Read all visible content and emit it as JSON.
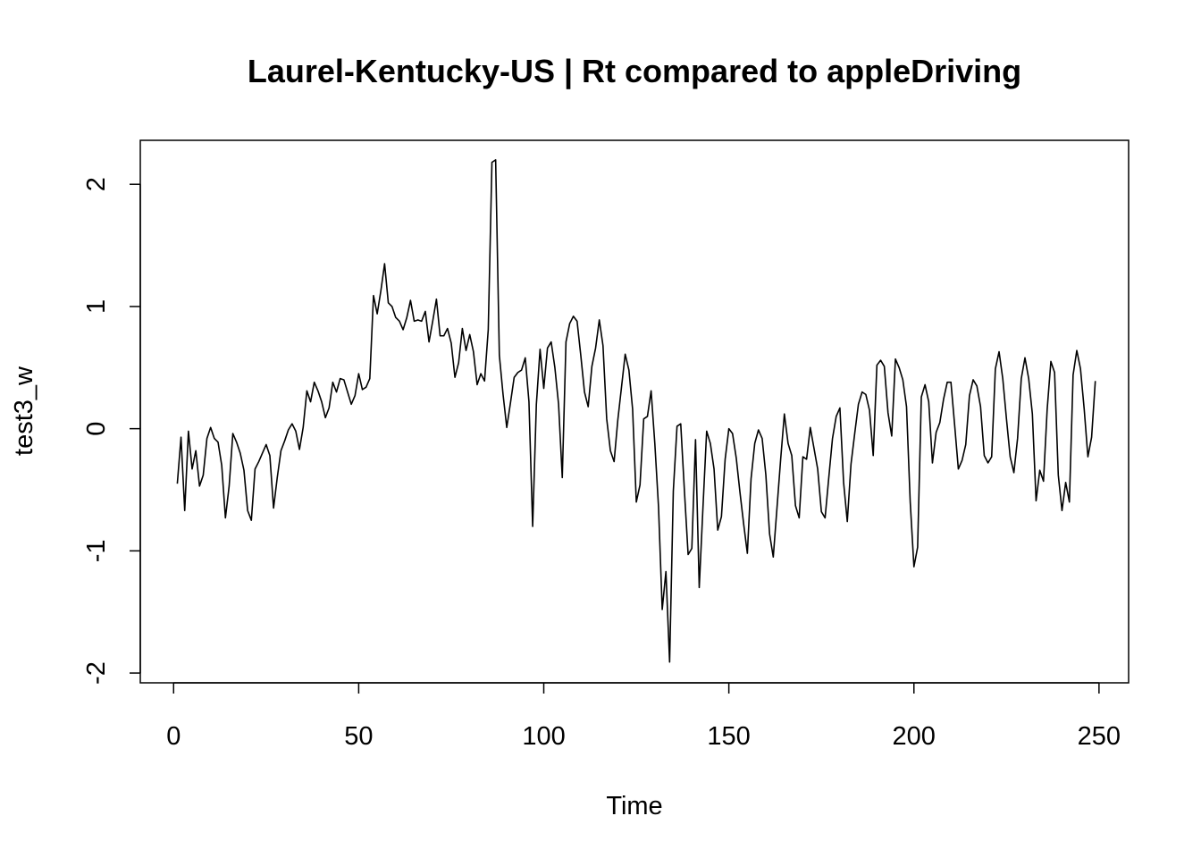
{
  "chart_data": {
    "type": "line",
    "title": "Laurel-Kentucky-US | Rt compared to appleDriving",
    "xlabel": "Time",
    "ylabel": "test3_w",
    "xlim": [
      -9,
      258
    ],
    "ylim": [
      -2.08,
      2.36
    ],
    "x_ticks": [
      0,
      50,
      100,
      150,
      200,
      250
    ],
    "y_ticks": [
      -2,
      -1,
      0,
      1,
      2
    ],
    "grid": false,
    "legend": "none",
    "line_color": "#000000",
    "series": [
      {
        "x_start": 1,
        "values": [
          -0.45,
          -0.07,
          -0.67,
          -0.02,
          -0.33,
          -0.18,
          -0.47,
          -0.38,
          -0.08,
          0.01,
          -0.08,
          -0.11,
          -0.3,
          -0.73,
          -0.47,
          -0.04,
          -0.11,
          -0.2,
          -0.34,
          -0.67,
          -0.75,
          -0.33,
          -0.27,
          -0.2,
          -0.13,
          -0.22,
          -0.65,
          -0.4,
          -0.18,
          -0.1,
          -0.01,
          0.04,
          -0.02,
          -0.17,
          0.01,
          0.31,
          0.22,
          0.38,
          0.31,
          0.22,
          0.09,
          0.17,
          0.38,
          0.3,
          0.41,
          0.4,
          0.3,
          0.2,
          0.27,
          0.45,
          0.32,
          0.34,
          0.41,
          1.09,
          0.94,
          1.13,
          1.35,
          1.03,
          1.0,
          0.91,
          0.88,
          0.81,
          0.91,
          1.05,
          0.88,
          0.89,
          0.88,
          0.96,
          0.71,
          0.88,
          1.06,
          0.76,
          0.76,
          0.82,
          0.7,
          0.42,
          0.54,
          0.82,
          0.64,
          0.77,
          0.63,
          0.36,
          0.45,
          0.39,
          0.81,
          2.18,
          2.2,
          0.6,
          0.28,
          0.01,
          0.21,
          0.42,
          0.46,
          0.48,
          0.58,
          0.22,
          -0.8,
          0.2,
          0.65,
          0.33,
          0.66,
          0.71,
          0.5,
          0.2,
          -0.4,
          0.71,
          0.86,
          0.92,
          0.88,
          0.6,
          0.3,
          0.18,
          0.51,
          0.66,
          0.89,
          0.68,
          0.08,
          -0.18,
          -0.27,
          0.07,
          0.34,
          0.61,
          0.48,
          0.16,
          -0.6,
          -0.46,
          0.08,
          0.1,
          0.31,
          -0.12,
          -0.64,
          -1.48,
          -1.17,
          -1.91,
          -0.51,
          0.02,
          0.04,
          -0.51,
          -1.03,
          -0.98,
          -0.09,
          -1.3,
          -0.65,
          -0.02,
          -0.12,
          -0.33,
          -0.83,
          -0.72,
          -0.25,
          0.0,
          -0.04,
          -0.24,
          -0.52,
          -0.78,
          -1.02,
          -0.41,
          -0.12,
          -0.01,
          -0.08,
          -0.38,
          -0.86,
          -1.05,
          -0.65,
          -0.25,
          0.12,
          -0.12,
          -0.22,
          -0.63,
          -0.73,
          -0.23,
          -0.25,
          0.01,
          -0.16,
          -0.33,
          -0.68,
          -0.73,
          -0.4,
          -0.08,
          0.1,
          0.17,
          -0.44,
          -0.76,
          -0.29,
          -0.04,
          0.2,
          0.3,
          0.28,
          0.15,
          -0.22,
          0.52,
          0.56,
          0.51,
          0.13,
          -0.06,
          0.57,
          0.5,
          0.4,
          0.18,
          -0.6,
          -1.13,
          -0.97,
          0.26,
          0.36,
          0.22,
          -0.28,
          -0.03,
          0.05,
          0.24,
          0.38,
          0.38,
          0.03,
          -0.33,
          -0.26,
          -0.13,
          0.27,
          0.4,
          0.35,
          0.18,
          -0.22,
          -0.28,
          -0.23,
          0.49,
          0.63,
          0.41,
          0.08,
          -0.23,
          -0.36,
          -0.08,
          0.41,
          0.58,
          0.41,
          0.12,
          -0.59,
          -0.34,
          -0.43,
          0.16,
          0.55,
          0.46,
          -0.38,
          -0.67,
          -0.44,
          -0.6,
          0.44,
          0.64,
          0.49,
          0.16,
          -0.23,
          -0.07,
          0.39
        ]
      }
    ]
  }
}
